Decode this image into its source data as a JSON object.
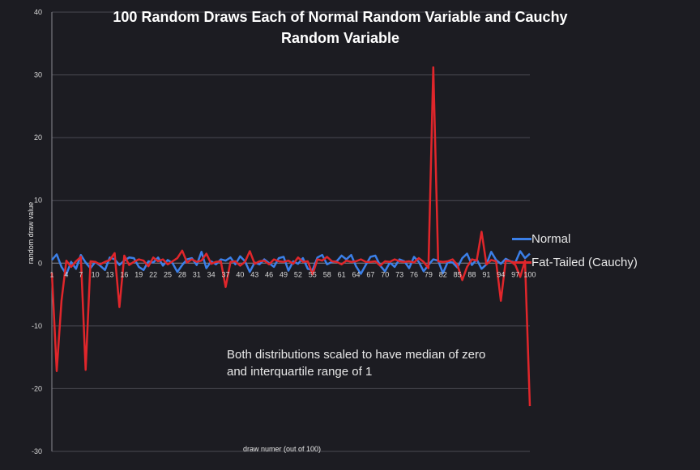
{
  "chart_data": {
    "type": "line",
    "title": "100 Random Draws Each of Normal Random Variable and Cauchy Random Variable",
    "xlabel": "draw numer (out of 100)",
    "ylabel": "random draw value",
    "ylim": [
      -30,
      40
    ],
    "yticks": [
      -30,
      -20,
      -10,
      0,
      10,
      20,
      30,
      40
    ],
    "xtick_labels": [
      "1",
      "4",
      "7",
      "10",
      "13",
      "16",
      "19",
      "22",
      "25",
      "28",
      "31",
      "34",
      "37",
      "40",
      "43",
      "46",
      "49",
      "52",
      "55",
      "58",
      "61",
      "64",
      "67",
      "70",
      "73",
      "76",
      "79",
      "82",
      "85",
      "88",
      "91",
      "94",
      "97",
      "100"
    ],
    "x": [
      1,
      2,
      3,
      4,
      5,
      6,
      7,
      8,
      9,
      10,
      11,
      12,
      13,
      14,
      15,
      16,
      17,
      18,
      19,
      20,
      21,
      22,
      23,
      24,
      25,
      26,
      27,
      28,
      29,
      30,
      31,
      32,
      33,
      34,
      35,
      36,
      37,
      38,
      39,
      40,
      41,
      42,
      43,
      44,
      45,
      46,
      47,
      48,
      49,
      50,
      51,
      52,
      53,
      54,
      55,
      56,
      57,
      58,
      59,
      60,
      61,
      62,
      63,
      64,
      65,
      66,
      67,
      68,
      69,
      70,
      71,
      72,
      73,
      74,
      75,
      76,
      77,
      78,
      79,
      80,
      81,
      82,
      83,
      84,
      85,
      86,
      87,
      88,
      89,
      90,
      91,
      92,
      93,
      94,
      95,
      96,
      97,
      98,
      99,
      100
    ],
    "grid": "horizontal",
    "legend_position": "right",
    "annotation": "Both distributions scaled to have median of zero and interquartile range of 1",
    "series": [
      {
        "name": "Normal",
        "color": "#3b7fe8",
        "values": [
          0.5,
          1.4,
          -0.6,
          -1.8,
          0.2,
          -0.9,
          1.3,
          0.1,
          -0.8,
          0.2,
          -0.4,
          -1.1,
          0.9,
          0.6,
          -0.3,
          0.4,
          0.9,
          0.8,
          -0.6,
          -1.1,
          0.3,
          0.1,
          0.9,
          -0.4,
          0.5,
          0.0,
          -1.4,
          -0.3,
          0.6,
          0.8,
          -0.3,
          1.8,
          -0.8,
          0.3,
          -0.2,
          0.6,
          0.4,
          0.9,
          -0.2,
          1.1,
          0.3,
          -1.4,
          0.1,
          -0.2,
          0.6,
          0.0,
          -0.6,
          0.8,
          1.0,
          -1.2,
          0.3,
          -0.1,
          0.8,
          -0.9,
          -1.1,
          0.9,
          1.3,
          -0.2,
          0.2,
          0.3,
          1.2,
          0.6,
          1.3,
          -0.5,
          -1.7,
          -0.3,
          1.0,
          1.2,
          -0.4,
          -1.3,
          0.1,
          -0.6,
          0.6,
          0.3,
          -0.8,
          1.0,
          0.2,
          -1.3,
          -0.3,
          0.6,
          0.4,
          -1.6,
          0.2,
          0.1,
          -0.7,
          0.8,
          1.5,
          -0.3,
          0.6,
          -0.9,
          -0.2,
          1.8,
          0.5,
          -0.1,
          0.7,
          0.3,
          0.1,
          1.9,
          0.8,
          1.5
        ]
      },
      {
        "name": "Fat-Tailed (Cauchy)",
        "color": "#e0262b",
        "values": [
          -1.5,
          -17.2,
          -6.0,
          0.4,
          -0.6,
          0.3,
          1.0,
          -17.0,
          0.3,
          0.2,
          -0.2,
          0.2,
          0.5,
          1.6,
          -7.0,
          1.2,
          -0.3,
          0.2,
          0.6,
          0.4,
          -0.5,
          0.9,
          0.3,
          0.6,
          -0.2,
          0.3,
          0.8,
          2.0,
          0.1,
          0.6,
          0.2,
          0.4,
          1.5,
          -0.1,
          0.2,
          0.3,
          -3.8,
          0.2,
          0.3,
          -0.4,
          0.2,
          1.9,
          -0.1,
          0.3,
          0.4,
          -0.2,
          0.6,
          0.3,
          0.2,
          0.4,
          -0.1,
          0.9,
          0.2,
          0.3,
          -1.8,
          0.6,
          0.4,
          1.0,
          0.3,
          0.2,
          -0.2,
          0.4,
          0.2,
          0.3,
          0.6,
          0.2,
          0.2,
          0.3,
          -0.4,
          0.3,
          0.2,
          0.6,
          0.3,
          0.2,
          0.3,
          0.1,
          0.8,
          0.2,
          -0.8,
          31.2,
          0.3,
          0.2,
          0.3,
          0.6,
          -0.3,
          -2.7,
          -0.6,
          0.6,
          0.4,
          5.0,
          -0.2,
          0.5,
          0.3,
          -6.0,
          0.4,
          0.3,
          -0.3,
          -2.2,
          0.4,
          -22.8
        ]
      }
    ]
  }
}
